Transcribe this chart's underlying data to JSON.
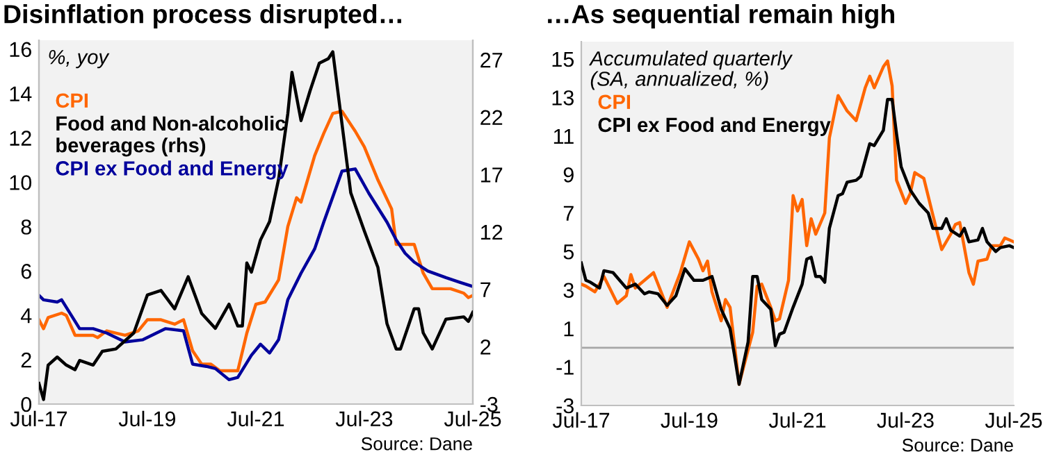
{
  "chart_data": [
    {
      "type": "line",
      "title": "Disinflation process disrupted…",
      "subtitle": "%, yoy",
      "legend": "top left",
      "grid": false,
      "marker": "none",
      "line_style": "solid",
      "xlim": [
        "2017-07",
        "2025-07"
      ],
      "xticks": [
        {
          "value": "2017-07",
          "label": "Jul-17"
        },
        {
          "value": "2019-07",
          "label": "Jul-19"
        },
        {
          "value": "2021-07",
          "label": "Jul-21"
        },
        {
          "value": "2023-07",
          "label": "Jul-23"
        },
        {
          "value": "2025-07",
          "label": "Jul-25"
        }
      ],
      "ylim": [
        0,
        16.4
      ],
      "yticks": [
        0,
        2,
        4,
        6,
        8,
        10,
        12,
        14,
        16
      ],
      "y2lim": [
        -3,
        28.7
      ],
      "y2ticks": [
        -3,
        2,
        7,
        12,
        17,
        22,
        27
      ],
      "annotations": [
        "Source: Dane"
      ],
      "series": [
        {
          "name": "CPI",
          "color": "#ff6600",
          "x": [
            "2017-07",
            "2017-08",
            "2017-09",
            "2017-12",
            "2018-01",
            "2018-03",
            "2018-07",
            "2018-08",
            "2018-10",
            "2019-02",
            "2019-05",
            "2019-07",
            "2019-10",
            "2020-01",
            "2020-03",
            "2020-05",
            "2020-07",
            "2020-09",
            "2020-11",
            "2021-03",
            "2021-05",
            "2021-07",
            "2021-09",
            "2021-12",
            "2022-02",
            "2022-04",
            "2022-05",
            "2022-08",
            "2022-10",
            "2022-12",
            "2023-02",
            "2023-05",
            "2023-07",
            "2023-10",
            "2024-01",
            "2024-02",
            "2024-06",
            "2024-08",
            "2024-10",
            "2025-02",
            "2025-05",
            "2025-06",
            "2025-07"
          ],
          "values": [
            3.8,
            3.4,
            3.9,
            4.1,
            4.0,
            3.1,
            3.1,
            3.0,
            3.3,
            3.1,
            3.3,
            3.8,
            3.8,
            3.6,
            3.8,
            2.4,
            1.8,
            1.8,
            1.5,
            1.5,
            3.2,
            4.5,
            4.6,
            5.6,
            8.0,
            9.3,
            9.1,
            11.2,
            12.2,
            13.1,
            13.2,
            12.3,
            11.6,
            10.1,
            8.8,
            7.2,
            7.2,
            5.9,
            5.2,
            5.2,
            5.0,
            4.8,
            4.9
          ]
        },
        {
          "name": "Food and Non-alcoholic\nbeverages (rhs)",
          "color": "#000000",
          "axis": "y2",
          "x": [
            "2017-07",
            "2017-08",
            "2017-09",
            "2017-11",
            "2018-01",
            "2018-03",
            "2018-04",
            "2018-07",
            "2018-09",
            "2018-12",
            "2019-04",
            "2019-07",
            "2019-10",
            "2020-01",
            "2020-04",
            "2020-07",
            "2020-10",
            "2021-01",
            "2021-03",
            "2021-04",
            "2021-05",
            "2021-06",
            "2021-08",
            "2021-10",
            "2021-12",
            "2022-02",
            "2022-03",
            "2022-05",
            "2022-07",
            "2022-09",
            "2022-11",
            "2022-12",
            "2023-04",
            "2023-07",
            "2023-10",
            "2023-12",
            "2024-02",
            "2024-03",
            "2024-06",
            "2024-07",
            "2024-08",
            "2024-10",
            "2025-01",
            "2025-05",
            "2025-06",
            "2025-07"
          ],
          "values": [
            -1.2,
            -2.6,
            0.4,
            1.1,
            0.4,
            0.0,
            0.8,
            0.4,
            1.6,
            1.8,
            3.2,
            6.5,
            6.9,
            5.3,
            8.1,
            4.9,
            3.6,
            5.7,
            3.8,
            3.8,
            9.3,
            8.5,
            11.3,
            12.9,
            16.6,
            22.3,
            25.9,
            21.7,
            24.3,
            26.7,
            27.1,
            27.7,
            15.4,
            12.1,
            8.9,
            4.0,
            1.8,
            1.8,
            5.3,
            5.3,
            3.2,
            1.8,
            4.4,
            4.6,
            4.2,
            5.0
          ]
        },
        {
          "name": "CPI ex Food and Energy",
          "color": "#00009c",
          "x": [
            "2017-07",
            "2017-08",
            "2017-11",
            "2017-12",
            "2018-04",
            "2018-07",
            "2018-10",
            "2019-02",
            "2019-06",
            "2019-11",
            "2020-03",
            "2020-05",
            "2020-08",
            "2020-10",
            "2021-01",
            "2021-03",
            "2021-06",
            "2021-08",
            "2021-10",
            "2021-12",
            "2022-02",
            "2022-05",
            "2022-08",
            "2022-10",
            "2023-02",
            "2023-05",
            "2023-08",
            "2023-12",
            "2024-02",
            "2024-04",
            "2024-06",
            "2024-09",
            "2025-01",
            "2025-04",
            "2025-07"
          ],
          "values": [
            4.9,
            4.7,
            4.6,
            4.7,
            3.4,
            3.4,
            3.2,
            2.8,
            2.9,
            3.4,
            3.3,
            1.8,
            1.7,
            1.6,
            1.1,
            1.2,
            2.2,
            2.7,
            2.3,
            2.9,
            4.7,
            5.9,
            7.0,
            8.2,
            10.5,
            10.6,
            9.5,
            8.2,
            7.4,
            6.8,
            6.4,
            6.0,
            5.7,
            5.5,
            5.3
          ]
        }
      ]
    },
    {
      "type": "line",
      "title": "…As sequential remain high",
      "subtitle": "Accumulated quarterly\n(SA, annualized, %)",
      "legend": "top left",
      "grid": false,
      "marker": "none",
      "line_style": "solid",
      "xlim": [
        "2017-07",
        "2025-07"
      ],
      "xticks": [
        {
          "value": "2017-07",
          "label": "Jul-17"
        },
        {
          "value": "2019-07",
          "label": "Jul-19"
        },
        {
          "value": "2021-07",
          "label": "Jul-21"
        },
        {
          "value": "2023-07",
          "label": "Jul-23"
        },
        {
          "value": "2025-07",
          "label": "Jul-25"
        }
      ],
      "ylim": [
        -3,
        15.9
      ],
      "yticks": [
        -3,
        -1,
        1,
        3,
        5,
        7,
        9,
        11,
        13,
        15
      ],
      "ref_lines": [
        {
          "axis": "y",
          "value": 0,
          "label": null,
          "color": "#a6a6a6"
        }
      ],
      "annotations": [
        "Source: Dane"
      ],
      "series": [
        {
          "name": "CPI",
          "color": "#ff6600",
          "x": [
            "2017-07",
            "2017-08",
            "2017-10",
            "2017-12",
            "2018-03",
            "2018-05",
            "2018-06",
            "2018-07",
            "2018-11",
            "2019-02",
            "2019-05",
            "2019-07",
            "2019-09",
            "2019-10",
            "2019-11",
            "2019-12",
            "2020-02",
            "2020-03",
            "2020-04",
            "2020-06",
            "2020-09",
            "2020-10",
            "2020-11",
            "2021-01",
            "2021-02",
            "2021-03",
            "2021-05",
            "2021-06",
            "2021-07",
            "2021-08",
            "2021-09",
            "2021-10",
            "2021-11",
            "2022-01",
            "2022-02",
            "2022-04",
            "2022-06",
            "2022-08",
            "2022-10",
            "2022-11",
            "2022-12",
            "2023-02",
            "2023-03",
            "2023-04",
            "2023-05",
            "2023-07",
            "2023-08",
            "2023-09",
            "2023-11",
            "2024-01",
            "2024-03",
            "2024-05",
            "2024-06",
            "2024-07",
            "2024-09",
            "2024-10",
            "2024-11",
            "2025-01",
            "2025-02",
            "2025-04",
            "2025-05",
            "2025-06",
            "2025-07"
          ],
          "values": [
            3.3,
            3.2,
            2.9,
            3.7,
            2.3,
            2.7,
            3.8,
            3.1,
            3.9,
            2.1,
            3.9,
            5.5,
            4.6,
            4.0,
            4.5,
            2.9,
            1.4,
            2.5,
            2.1,
            -1.9,
            0.8,
            3.2,
            3.3,
            2.1,
            1.4,
            1.5,
            3.5,
            7.9,
            7.1,
            7.7,
            5.3,
            6.7,
            5.9,
            7.0,
            10.9,
            13.1,
            12.3,
            11.8,
            13.5,
            14.1,
            13.5,
            14.6,
            14.9,
            13.6,
            8.7,
            7.5,
            8.0,
            9.1,
            8.8,
            6.9,
            5.1,
            5.9,
            6.4,
            6.5,
            3.9,
            3.3,
            4.5,
            4.6,
            5.3,
            5.3,
            5.7,
            5.6,
            5.5
          ]
        },
        {
          "name": "CPI ex Food and Energy",
          "color": "#000000",
          "x": [
            "2017-07",
            "2017-08",
            "2017-09",
            "2017-11",
            "2017-12",
            "2018-02",
            "2018-05",
            "2018-07",
            "2018-09",
            "2018-10",
            "2018-12",
            "2019-02",
            "2019-04",
            "2019-06",
            "2019-08",
            "2019-10",
            "2019-12",
            "2020-02",
            "2020-04",
            "2020-05",
            "2020-06",
            "2020-08",
            "2020-09",
            "2020-10",
            "2020-11",
            "2021-01",
            "2021-02",
            "2021-03",
            "2021-04",
            "2021-06",
            "2021-08",
            "2021-09",
            "2021-10",
            "2021-11",
            "2021-12",
            "2022-01",
            "2022-02",
            "2022-04",
            "2022-05",
            "2022-06",
            "2022-08",
            "2022-09",
            "2022-11",
            "2022-12",
            "2023-02",
            "2023-03",
            "2023-04",
            "2023-05",
            "2023-06",
            "2023-08",
            "2023-10",
            "2023-12",
            "2024-01",
            "2024-03",
            "2024-04",
            "2024-05",
            "2024-07",
            "2024-08",
            "2024-09",
            "2024-11",
            "2024-12",
            "2025-01",
            "2025-03",
            "2025-04",
            "2025-06",
            "2025-07"
          ],
          "values": [
            4.4,
            3.5,
            3.4,
            3.1,
            4.0,
            3.9,
            3.1,
            3.3,
            2.8,
            2.9,
            2.8,
            2.2,
            2.7,
            4.1,
            3.5,
            3.5,
            3.7,
            2.0,
            1.0,
            -0.4,
            -1.9,
            0.3,
            3.7,
            3.7,
            2.5,
            2.0,
            0.1,
            0.7,
            0.8,
            2.1,
            3.3,
            4.6,
            4.7,
            3.7,
            3.7,
            3.4,
            6.2,
            7.9,
            8.0,
            8.6,
            8.7,
            8.9,
            10.6,
            10.5,
            11.3,
            12.9,
            12.9,
            11.1,
            9.4,
            8.2,
            7.5,
            7.0,
            6.2,
            6.2,
            6.7,
            6.1,
            5.8,
            6.2,
            5.5,
            5.6,
            6.2,
            5.5,
            5.0,
            5.2,
            5.3,
            5.2
          ]
        }
      ]
    }
  ]
}
